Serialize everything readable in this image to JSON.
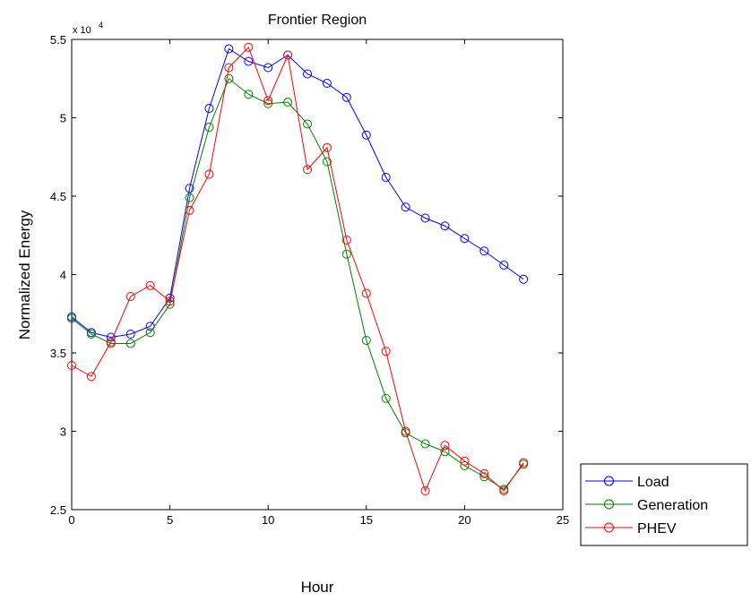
{
  "chart_data": {
    "type": "line",
    "title": "Frontier Region",
    "xlabel": "Hour",
    "ylabel": "Normalized Energy",
    "y_multiplier_label": "x 10",
    "y_multiplier_exponent": "4",
    "xlim": [
      0,
      25
    ],
    "ylim": [
      2.5,
      5.5
    ],
    "xticks": [
      0,
      5,
      10,
      15,
      20,
      25
    ],
    "xtick_labels": [
      "0",
      "5",
      "10",
      "15",
      "20",
      "25"
    ],
    "yticks": [
      2.5,
      3,
      3.5,
      4,
      4.5,
      5,
      5.5
    ],
    "ytick_labels": [
      "2.5",
      "3",
      "3.5",
      "4",
      "4.5",
      "5",
      "5.5"
    ],
    "grid": false,
    "legend_position": "outside-bottom-right",
    "x": [
      0,
      1,
      2,
      3,
      4,
      5,
      6,
      7,
      8,
      9,
      10,
      11,
      12,
      13,
      14,
      15,
      16,
      17,
      18,
      19,
      20,
      21,
      22,
      23
    ],
    "series": [
      {
        "name": "Load",
        "color": "#0000ff",
        "values": [
          3.73,
          3.63,
          3.6,
          3.62,
          3.67,
          3.85,
          4.55,
          5.06,
          5.44,
          5.36,
          5.32,
          5.4,
          5.28,
          5.22,
          5.13,
          4.89,
          4.62,
          4.43,
          4.36,
          4.31,
          4.23,
          4.15,
          4.06,
          3.97
        ]
      },
      {
        "name": "Generation",
        "color": "#008000",
        "values": [
          3.72,
          3.62,
          3.56,
          3.56,
          3.63,
          3.81,
          4.49,
          4.94,
          5.25,
          5.15,
          5.09,
          5.1,
          4.96,
          4.72,
          4.13,
          3.58,
          3.21,
          2.99,
          2.92,
          2.87,
          2.78,
          2.71,
          2.63,
          2.79
        ]
      },
      {
        "name": "PHEV",
        "color": "#ff0000",
        "values": [
          3.42,
          3.35,
          3.57,
          3.86,
          3.93,
          3.83,
          4.41,
          4.64,
          5.32,
          5.45,
          5.11,
          5.4,
          4.67,
          4.81,
          4.22,
          3.88,
          3.51,
          3.0,
          2.62,
          2.91,
          2.81,
          2.73,
          2.62,
          2.8
        ]
      }
    ]
  }
}
